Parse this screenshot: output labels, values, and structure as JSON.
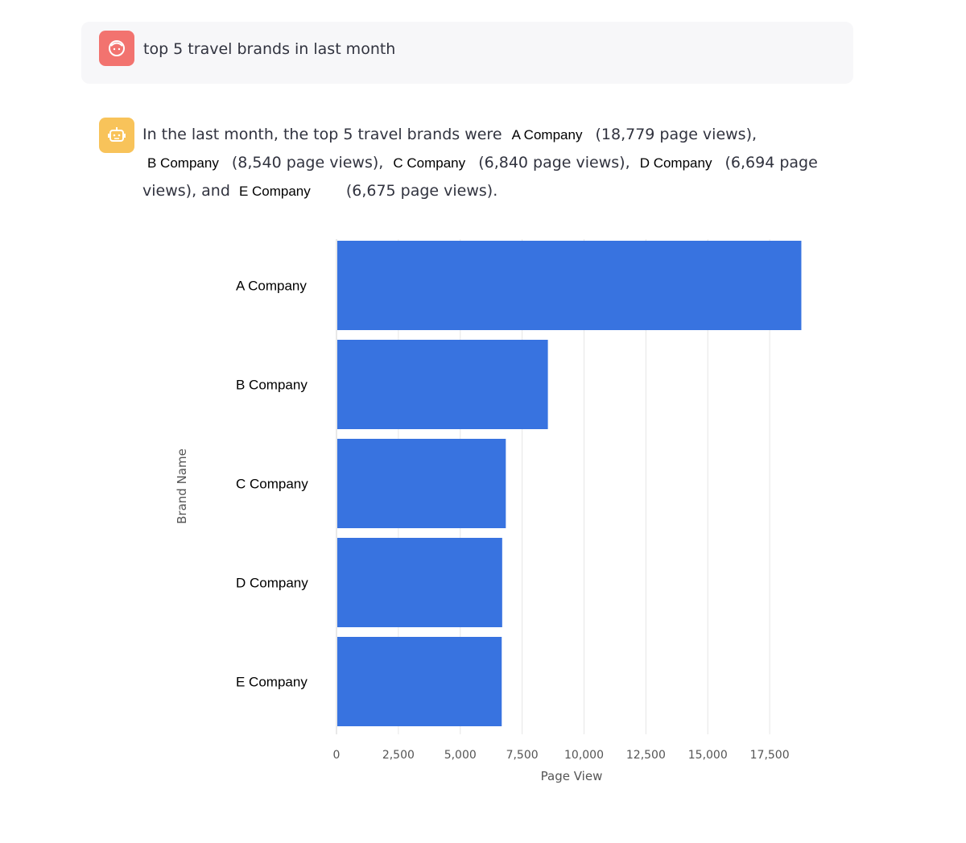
{
  "user_message": {
    "avatar_icon": "user-face-icon",
    "avatar_color": "#f2736f",
    "text": "top 5 travel brands in last month"
  },
  "assistant_message": {
    "avatar_icon": "robot-icon",
    "avatar_color": "#f8c35a",
    "intro": "In the last month, the top 5 travel brands were",
    "brands": [
      "A Company",
      "B Company",
      "C Company",
      "D Company",
      "E Company"
    ],
    "counts": [
      "(18,779 page views),",
      "(8,540 page views),",
      "(6,840 page views),",
      "(6,694 page views), and",
      "(6,675 page views)."
    ]
  },
  "chart_data": {
    "type": "bar",
    "orientation": "horizontal",
    "categories": [
      "A Company",
      "B Company",
      "C Company",
      "D Company",
      "E Company"
    ],
    "values": [
      18779,
      8540,
      6840,
      6694,
      6675
    ],
    "xlabel": "Page View",
    "ylabel": "Brand Name",
    "xlim": [
      0,
      20000
    ],
    "xticks": [
      0,
      2500,
      5000,
      7500,
      10000,
      12500,
      15000,
      17500
    ],
    "xtick_labels": [
      "0",
      "2,500",
      "5,000",
      "7,500",
      "10,000",
      "12,500",
      "15,000",
      "17,500"
    ],
    "bar_color": "#3873e0",
    "grid": true
  }
}
